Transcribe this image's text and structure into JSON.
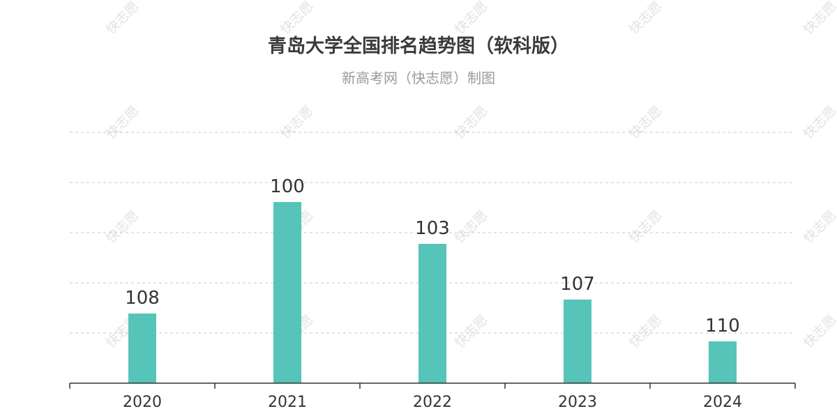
{
  "watermark": "快志愿",
  "chart_data": {
    "type": "bar",
    "title": "青岛大学全国排名趋势图（软科版）",
    "subtitle": "新高考网（快志愿）制图",
    "categories": [
      "2020",
      "2021",
      "2022",
      "2023",
      "2024"
    ],
    "values": [
      108,
      100,
      103,
      107,
      110
    ],
    "axis_inverted": true,
    "ylim": [
      113,
      95
    ],
    "grid": true,
    "legend": "none",
    "bar_color": "#56c4b8"
  }
}
